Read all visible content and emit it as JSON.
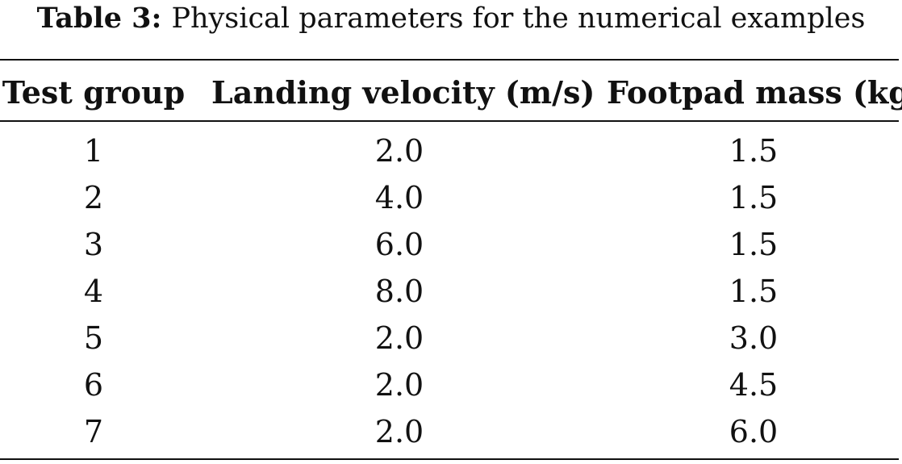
{
  "caption": {
    "label": "Table 3:",
    "text": "Physical parameters for the numerical examples"
  },
  "table": {
    "headers": [
      "Test group",
      "Landing velocity (m/s)",
      "Footpad mass (kg)"
    ],
    "rows": [
      [
        "1",
        "2.0",
        "1.5"
      ],
      [
        "2",
        "4.0",
        "1.5"
      ],
      [
        "3",
        "6.0",
        "1.5"
      ],
      [
        "4",
        "8.0",
        "1.5"
      ],
      [
        "5",
        "2.0",
        "3.0"
      ],
      [
        "6",
        "2.0",
        "4.5"
      ],
      [
        "7",
        "2.0",
        "6.0"
      ]
    ]
  }
}
